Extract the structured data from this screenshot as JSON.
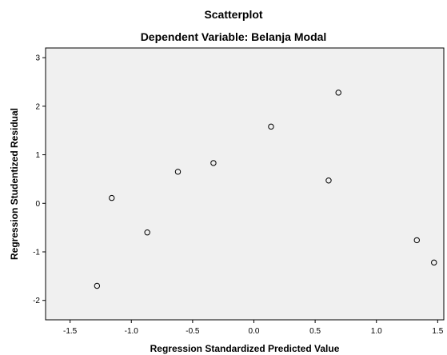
{
  "chart_data": {
    "type": "scatter",
    "title": "Scatterplot",
    "subtitle": "Dependent Variable: Belanja Modal",
    "xlabel": "Regression Standardized Predicted Value",
    "ylabel": "Regression Studentized Residual",
    "xlim": [
      -1.7,
      1.55
    ],
    "ylim": [
      -2.4,
      3.2
    ],
    "xticks": [
      "-1.5",
      "-1.0",
      "-0.5",
      "0.0",
      "0.5",
      "1.0",
      "1.5"
    ],
    "yticks": [
      "-2",
      "-1",
      "0",
      "1",
      "2",
      "3"
    ],
    "grid": false,
    "points": [
      {
        "x": -1.28,
        "y": -1.7
      },
      {
        "x": -1.16,
        "y": 0.11
      },
      {
        "x": -0.87,
        "y": -0.6
      },
      {
        "x": -0.62,
        "y": 0.65
      },
      {
        "x": -0.33,
        "y": 0.83
      },
      {
        "x": 0.14,
        "y": 1.58
      },
      {
        "x": 0.61,
        "y": 0.47
      },
      {
        "x": 0.69,
        "y": 2.28
      },
      {
        "x": 1.33,
        "y": -0.76
      },
      {
        "x": 1.47,
        "y": -1.22
      }
    ]
  }
}
